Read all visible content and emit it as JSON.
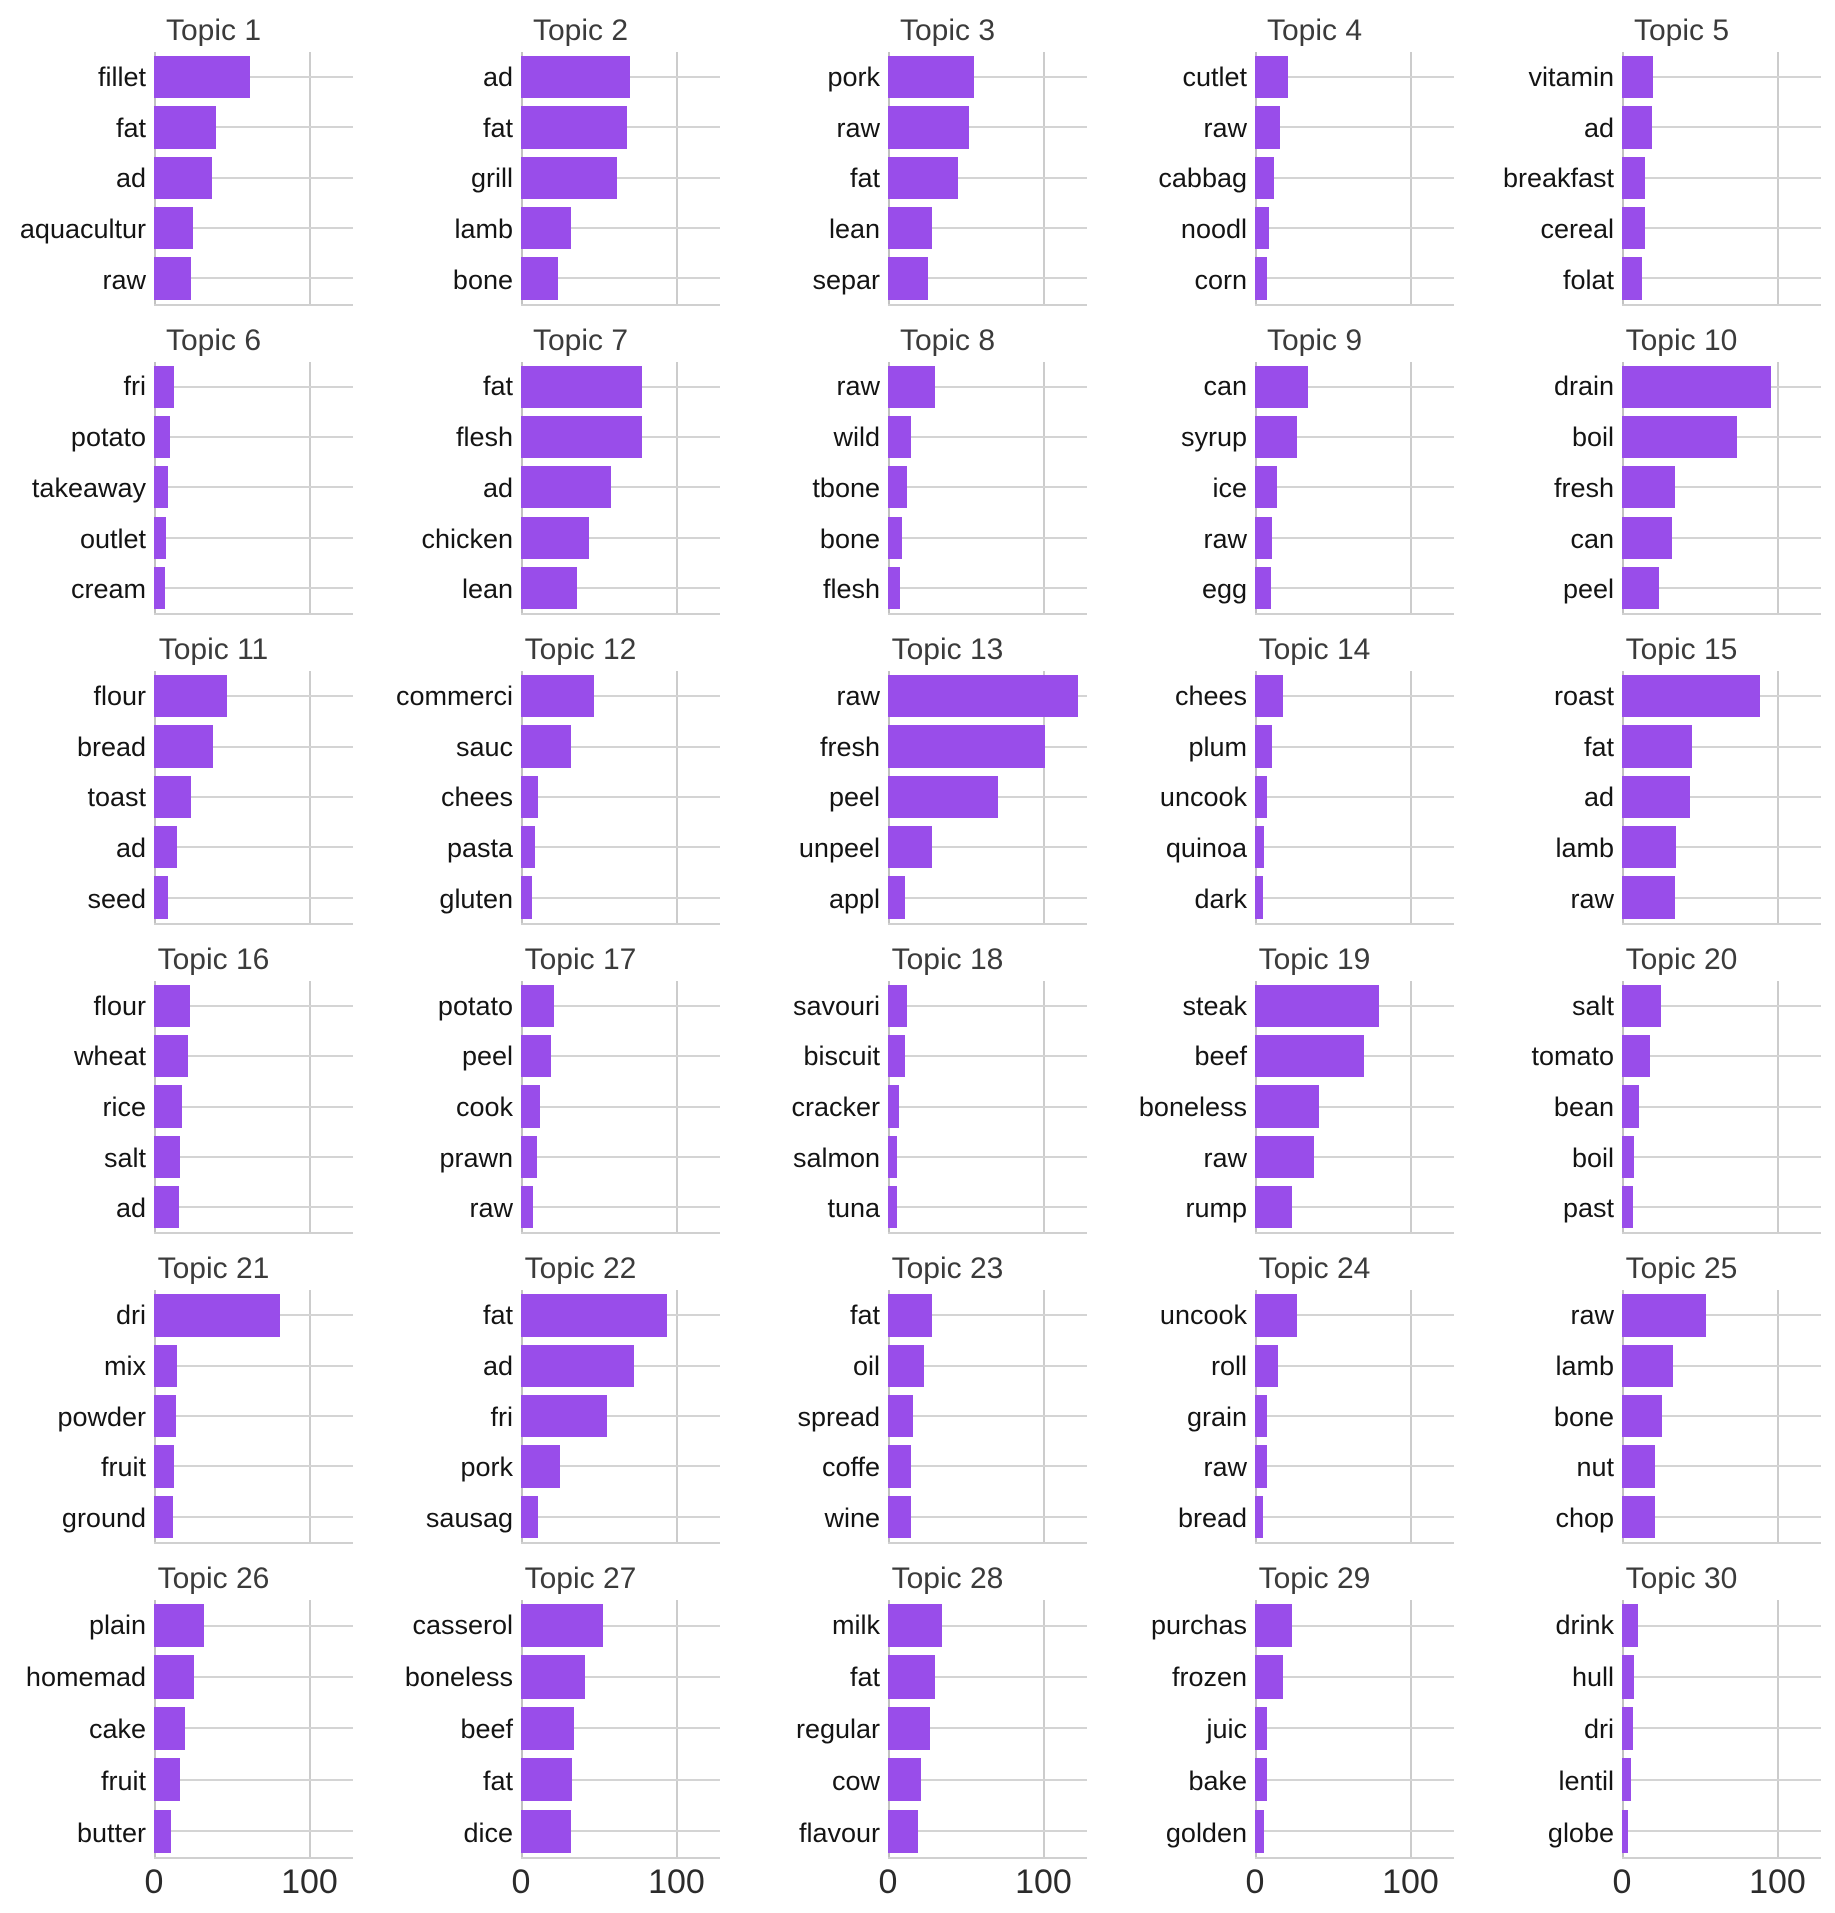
{
  "chart_data": {
    "type": "bar",
    "orientation": "horizontal",
    "title": "",
    "xlabel": "",
    "ylabel": "",
    "xlim": [
      0,
      128
    ],
    "x_ticks": [
      "0",
      "100"
    ],
    "x_tick_values": [
      0,
      100
    ],
    "grid": "on",
    "bar_color": "#994dea",
    "facets": [
      {
        "title": "Topic 1",
        "bars": [
          {
            "word": "fillet",
            "value": 62
          },
          {
            "word": "fat",
            "value": 40
          },
          {
            "word": "ad",
            "value": 37
          },
          {
            "word": "aquacultur",
            "value": 25
          },
          {
            "word": "raw",
            "value": 24
          }
        ]
      },
      {
        "title": "Topic 2",
        "bars": [
          {
            "word": "ad",
            "value": 70
          },
          {
            "word": "fat",
            "value": 68
          },
          {
            "word": "grill",
            "value": 62
          },
          {
            "word": "lamb",
            "value": 32
          },
          {
            "word": "bone",
            "value": 24
          }
        ]
      },
      {
        "title": "Topic 3",
        "bars": [
          {
            "word": "pork",
            "value": 55
          },
          {
            "word": "raw",
            "value": 52
          },
          {
            "word": "fat",
            "value": 45
          },
          {
            "word": "lean",
            "value": 28
          },
          {
            "word": "separ",
            "value": 26
          }
        ]
      },
      {
        "title": "Topic 4",
        "bars": [
          {
            "word": "cutlet",
            "value": 21
          },
          {
            "word": "raw",
            "value": 16
          },
          {
            "word": "cabbag",
            "value": 12
          },
          {
            "word": "noodl",
            "value": 9
          },
          {
            "word": "corn",
            "value": 8
          }
        ]
      },
      {
        "title": "Topic 5",
        "bars": [
          {
            "word": "vitamin",
            "value": 20
          },
          {
            "word": "ad",
            "value": 19
          },
          {
            "word": "breakfast",
            "value": 15
          },
          {
            "word": "cereal",
            "value": 15
          },
          {
            "word": "folat",
            "value": 13
          }
        ]
      },
      {
        "title": "Topic 6",
        "bars": [
          {
            "word": "fri",
            "value": 13
          },
          {
            "word": "potato",
            "value": 10
          },
          {
            "word": "takeaway",
            "value": 9
          },
          {
            "word": "outlet",
            "value": 8
          },
          {
            "word": "cream",
            "value": 7
          }
        ]
      },
      {
        "title": "Topic 7",
        "bars": [
          {
            "word": "fat",
            "value": 78
          },
          {
            "word": "flesh",
            "value": 78
          },
          {
            "word": "ad",
            "value": 58
          },
          {
            "word": "chicken",
            "value": 44
          },
          {
            "word": "lean",
            "value": 36
          }
        ]
      },
      {
        "title": "Topic 8",
        "bars": [
          {
            "word": "raw",
            "value": 30
          },
          {
            "word": "wild",
            "value": 15
          },
          {
            "word": "tbone",
            "value": 12
          },
          {
            "word": "bone",
            "value": 9
          },
          {
            "word": "flesh",
            "value": 8
          }
        ]
      },
      {
        "title": "Topic 9",
        "bars": [
          {
            "word": "can",
            "value": 34
          },
          {
            "word": "syrup",
            "value": 27
          },
          {
            "word": "ice",
            "value": 14
          },
          {
            "word": "raw",
            "value": 11
          },
          {
            "word": "egg",
            "value": 10
          }
        ]
      },
      {
        "title": "Topic 10",
        "bars": [
          {
            "word": "drain",
            "value": 96
          },
          {
            "word": "boil",
            "value": 74
          },
          {
            "word": "fresh",
            "value": 34
          },
          {
            "word": "can",
            "value": 32
          },
          {
            "word": "peel",
            "value": 24
          }
        ]
      },
      {
        "title": "Topic 11",
        "bars": [
          {
            "word": "flour",
            "value": 47
          },
          {
            "word": "bread",
            "value": 38
          },
          {
            "word": "toast",
            "value": 24
          },
          {
            "word": "ad",
            "value": 15
          },
          {
            "word": "seed",
            "value": 9
          }
        ]
      },
      {
        "title": "Topic 12",
        "bars": [
          {
            "word": "commerci",
            "value": 47
          },
          {
            "word": "sauc",
            "value": 32
          },
          {
            "word": "chees",
            "value": 11
          },
          {
            "word": "pasta",
            "value": 9
          },
          {
            "word": "gluten",
            "value": 7
          }
        ]
      },
      {
        "title": "Topic 13",
        "bars": [
          {
            "word": "raw",
            "value": 122
          },
          {
            "word": "fresh",
            "value": 101
          },
          {
            "word": "peel",
            "value": 71
          },
          {
            "word": "unpeel",
            "value": 28
          },
          {
            "word": "appl",
            "value": 11
          }
        ]
      },
      {
        "title": "Topic 14",
        "bars": [
          {
            "word": "chees",
            "value": 18
          },
          {
            "word": "plum",
            "value": 11
          },
          {
            "word": "uncook",
            "value": 8
          },
          {
            "word": "quinoa",
            "value": 6
          },
          {
            "word": "dark",
            "value": 5
          }
        ]
      },
      {
        "title": "Topic 15",
        "bars": [
          {
            "word": "roast",
            "value": 89
          },
          {
            "word": "fat",
            "value": 45
          },
          {
            "word": "ad",
            "value": 44
          },
          {
            "word": "lamb",
            "value": 35
          },
          {
            "word": "raw",
            "value": 34
          }
        ]
      },
      {
        "title": "Topic 16",
        "bars": [
          {
            "word": "flour",
            "value": 23
          },
          {
            "word": "wheat",
            "value": 22
          },
          {
            "word": "rice",
            "value": 18
          },
          {
            "word": "salt",
            "value": 17
          },
          {
            "word": "ad",
            "value": 16
          }
        ]
      },
      {
        "title": "Topic 17",
        "bars": [
          {
            "word": "potato",
            "value": 21
          },
          {
            "word": "peel",
            "value": 19
          },
          {
            "word": "cook",
            "value": 12
          },
          {
            "word": "prawn",
            "value": 10
          },
          {
            "word": "raw",
            "value": 8
          }
        ]
      },
      {
        "title": "Topic 18",
        "bars": [
          {
            "word": "savouri",
            "value": 12
          },
          {
            "word": "biscuit",
            "value": 11
          },
          {
            "word": "cracker",
            "value": 7
          },
          {
            "word": "salmon",
            "value": 6
          },
          {
            "word": "tuna",
            "value": 6
          }
        ]
      },
      {
        "title": "Topic 19",
        "bars": [
          {
            "word": "steak",
            "value": 80
          },
          {
            "word": "beef",
            "value": 70
          },
          {
            "word": "boneless",
            "value": 41
          },
          {
            "word": "raw",
            "value": 38
          },
          {
            "word": "rump",
            "value": 24
          }
        ]
      },
      {
        "title": "Topic 20",
        "bars": [
          {
            "word": "salt",
            "value": 25
          },
          {
            "word": "tomato",
            "value": 18
          },
          {
            "word": "bean",
            "value": 11
          },
          {
            "word": "boil",
            "value": 8
          },
          {
            "word": "past",
            "value": 7
          }
        ]
      },
      {
        "title": "Topic 21",
        "bars": [
          {
            "word": "dri",
            "value": 81
          },
          {
            "word": "mix",
            "value": 15
          },
          {
            "word": "powder",
            "value": 14
          },
          {
            "word": "fruit",
            "value": 13
          },
          {
            "word": "ground",
            "value": 12
          }
        ]
      },
      {
        "title": "Topic 22",
        "bars": [
          {
            "word": "fat",
            "value": 94
          },
          {
            "word": "ad",
            "value": 73
          },
          {
            "word": "fri",
            "value": 55
          },
          {
            "word": "pork",
            "value": 25
          },
          {
            "word": "sausag",
            "value": 11
          }
        ]
      },
      {
        "title": "Topic 23",
        "bars": [
          {
            "word": "fat",
            "value": 28
          },
          {
            "word": "oil",
            "value": 23
          },
          {
            "word": "spread",
            "value": 16
          },
          {
            "word": "coffe",
            "value": 15
          },
          {
            "word": "wine",
            "value": 15
          }
        ]
      },
      {
        "title": "Topic 24",
        "bars": [
          {
            "word": "uncook",
            "value": 27
          },
          {
            "word": "roll",
            "value": 15
          },
          {
            "word": "grain",
            "value": 8
          },
          {
            "word": "raw",
            "value": 8
          },
          {
            "word": "bread",
            "value": 5
          }
        ]
      },
      {
        "title": "Topic 25",
        "bars": [
          {
            "word": "raw",
            "value": 54
          },
          {
            "word": "lamb",
            "value": 33
          },
          {
            "word": "bone",
            "value": 26
          },
          {
            "word": "nut",
            "value": 21
          },
          {
            "word": "chop",
            "value": 21
          }
        ]
      },
      {
        "title": "Topic 26",
        "bars": [
          {
            "word": "plain",
            "value": 32
          },
          {
            "word": "homemad",
            "value": 26
          },
          {
            "word": "cake",
            "value": 20
          },
          {
            "word": "fruit",
            "value": 17
          },
          {
            "word": "butter",
            "value": 11
          }
        ]
      },
      {
        "title": "Topic 27",
        "bars": [
          {
            "word": "casserol",
            "value": 53
          },
          {
            "word": "boneless",
            "value": 41
          },
          {
            "word": "beef",
            "value": 34
          },
          {
            "word": "fat",
            "value": 33
          },
          {
            "word": "dice",
            "value": 32
          }
        ]
      },
      {
        "title": "Topic 28",
        "bars": [
          {
            "word": "milk",
            "value": 35
          },
          {
            "word": "fat",
            "value": 30
          },
          {
            "word": "regular",
            "value": 27
          },
          {
            "word": "cow",
            "value": 21
          },
          {
            "word": "flavour",
            "value": 19
          }
        ]
      },
      {
        "title": "Topic 29",
        "bars": [
          {
            "word": "purchas",
            "value": 24
          },
          {
            "word": "frozen",
            "value": 18
          },
          {
            "word": "juic",
            "value": 8
          },
          {
            "word": "bake",
            "value": 8
          },
          {
            "word": "golden",
            "value": 6
          }
        ]
      },
      {
        "title": "Topic 30",
        "bars": [
          {
            "word": "drink",
            "value": 10
          },
          {
            "word": "hull",
            "value": 8
          },
          {
            "word": "dri",
            "value": 7
          },
          {
            "word": "lentil",
            "value": 6
          },
          {
            "word": "globe",
            "value": 4
          }
        ]
      }
    ]
  }
}
